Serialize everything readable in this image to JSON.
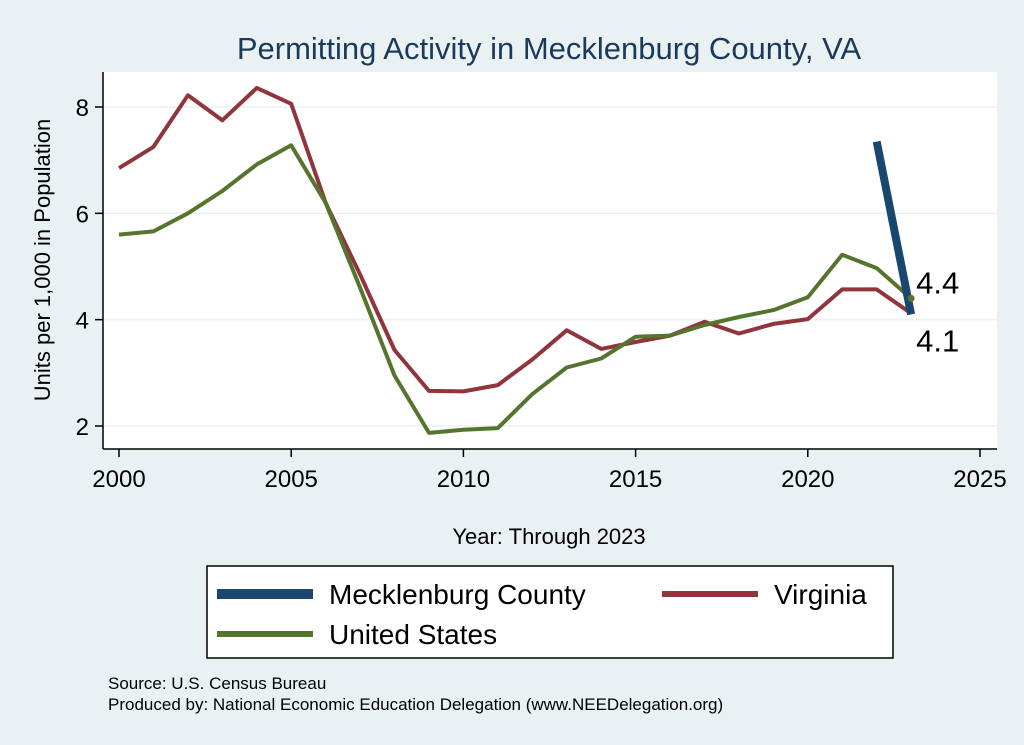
{
  "chart_data": {
    "type": "line",
    "title": "Permitting Activity in Mecklenburg County, VA",
    "xlabel": "Year: Through 2023",
    "ylabel": "Units per 1,000 in Population",
    "xlim": [
      2000,
      2025
    ],
    "ylim": [
      1.6,
      8.7
    ],
    "x_ticks": [
      2000,
      2005,
      2010,
      2015,
      2020,
      2025
    ],
    "y_ticks": [
      2,
      4,
      6,
      8
    ],
    "grid": true,
    "legend_position": "bottom",
    "series": [
      {
        "name": "Mecklenburg County",
        "color": "#1a476f",
        "width": 8,
        "x": [
          2022,
          2023
        ],
        "values": [
          7.35,
          4.1
        ]
      },
      {
        "name": "Virginia",
        "color": "#90353b",
        "width": 4,
        "x": [
          2000,
          2001,
          2002,
          2003,
          2004,
          2005,
          2006,
          2007,
          2008,
          2009,
          2010,
          2011,
          2012,
          2013,
          2014,
          2015,
          2016,
          2017,
          2018,
          2019,
          2020,
          2021,
          2022,
          2023
        ],
        "values": [
          6.85,
          7.25,
          8.22,
          7.75,
          8.36,
          8.06,
          6.2,
          4.85,
          3.43,
          2.66,
          2.65,
          2.77,
          3.25,
          3.8,
          3.45,
          3.58,
          3.7,
          3.96,
          3.74,
          3.92,
          4.01,
          4.57,
          4.57,
          4.12
        ]
      },
      {
        "name": "United States",
        "color": "#55752f",
        "width": 4,
        "x": [
          2000,
          2001,
          2002,
          2003,
          2004,
          2005,
          2006,
          2007,
          2008,
          2009,
          2010,
          2011,
          2012,
          2013,
          2014,
          2015,
          2016,
          2017,
          2018,
          2019,
          2020,
          2021,
          2022,
          2023
        ],
        "values": [
          5.6,
          5.66,
          6.0,
          6.42,
          6.92,
          7.28,
          6.2,
          4.6,
          2.95,
          1.87,
          1.93,
          1.96,
          2.6,
          3.1,
          3.27,
          3.68,
          3.7,
          3.9,
          4.05,
          4.18,
          4.42,
          5.22,
          4.97,
          4.4
        ]
      }
    ],
    "annotations": [
      {
        "text": "4.4",
        "x": 2023,
        "y": 4.4
      },
      {
        "text": "4.1",
        "x": 2023,
        "y": 4.1
      }
    ],
    "notes": {
      "source": "Source: U.S. Census Bureau",
      "produced_by": "Produced by: National Economic Education Delegation (www.NEEDelegation.org)"
    }
  }
}
